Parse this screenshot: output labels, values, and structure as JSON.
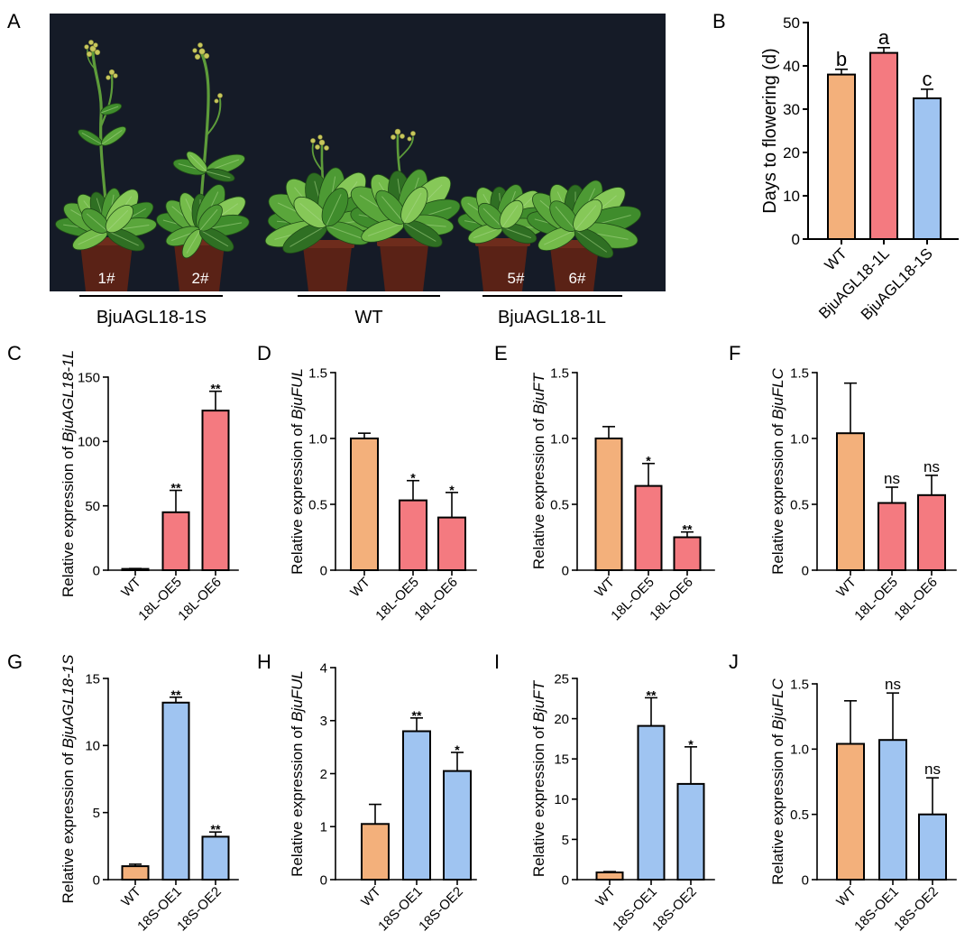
{
  "figure": {
    "photo": {
      "letter": "A",
      "pot_labels": [
        "1#",
        "2#",
        "5#",
        "6#"
      ],
      "group_labels": [
        "BjuAGL18-1S",
        "WT",
        "BjuAGL18-1L"
      ]
    },
    "colors": {
      "wt": "#F3B07B",
      "bjuagl18_1l": "#F47A80",
      "bjuagl18_1s": "#9FC4F1",
      "axis": "#000000",
      "photo_background": "#151B27",
      "pot": "#5A2216",
      "leaf": "#4E9A33"
    }
  },
  "chart_data": [
    {
      "panel": "B",
      "type": "bar",
      "ylabel": "Days to flowering (d)",
      "ylabel_italic": "",
      "categories": [
        "WT",
        "BjuAGL18-1L",
        "BjuAGL18-1S"
      ],
      "values": [
        38,
        43,
        32.5
      ],
      "errors": [
        1.2,
        1.2,
        2.1
      ],
      "annotations": [
        "b",
        "a",
        "c"
      ],
      "ylim": [
        0,
        50
      ],
      "yticks": [
        0,
        10,
        20,
        30,
        40,
        50
      ],
      "ytick_labels": [
        "0",
        "10",
        "20",
        "30",
        "40",
        "50"
      ],
      "bar_colors": [
        "#F3B07B",
        "#F47A80",
        "#9FC4F1"
      ]
    },
    {
      "panel": "C",
      "type": "bar",
      "ylabel": "Relative expression of ",
      "ylabel_italic": "BjuAGL18-1L",
      "categories": [
        "WT",
        "18L-OE5",
        "18L-OE6"
      ],
      "values": [
        1,
        45,
        124
      ],
      "errors": [
        0.3,
        17,
        15
      ],
      "annotations": [
        "",
        "**",
        "**"
      ],
      "ylim": [
        0,
        150
      ],
      "yticks": [
        0,
        50,
        100,
        150
      ],
      "ytick_labels": [
        "0",
        "50",
        "100",
        "150"
      ],
      "bar_colors": [
        "#F3B07B",
        "#F47A80",
        "#F47A80"
      ]
    },
    {
      "panel": "D",
      "type": "bar",
      "ylabel": "Relative expression of ",
      "ylabel_italic": "BjuFUL",
      "categories": [
        "WT",
        "18L-OE5",
        "18L-OE6"
      ],
      "values": [
        1.0,
        0.53,
        0.4
      ],
      "errors": [
        0.04,
        0.15,
        0.19
      ],
      "annotations": [
        "",
        "*",
        "*"
      ],
      "ylim": [
        0,
        1.5
      ],
      "yticks": [
        0,
        0.5,
        1.0,
        1.5
      ],
      "ytick_labels": [
        "0",
        "0.5",
        "1.0",
        "1.5"
      ],
      "bar_colors": [
        "#F3B07B",
        "#F47A80",
        "#F47A80"
      ]
    },
    {
      "panel": "E",
      "type": "bar",
      "ylabel": "Relative expression of ",
      "ylabel_italic": "BjuFT",
      "categories": [
        "WT",
        "18L-OE5",
        "18L-OE6"
      ],
      "values": [
        1.0,
        0.64,
        0.25
      ],
      "errors": [
        0.09,
        0.17,
        0.04
      ],
      "annotations": [
        "",
        "*",
        "**"
      ],
      "ylim": [
        0,
        1.5
      ],
      "yticks": [
        0,
        0.5,
        1.0,
        1.5
      ],
      "ytick_labels": [
        "0",
        "0.5",
        "1.0",
        "1.5"
      ],
      "bar_colors": [
        "#F3B07B",
        "#F47A80",
        "#F47A80"
      ]
    },
    {
      "panel": "F",
      "type": "bar",
      "ylabel": "Relative expression of ",
      "ylabel_italic": "BjuFLC",
      "categories": [
        "WT",
        "18L-OE5",
        "18L-OE6"
      ],
      "values": [
        1.04,
        0.51,
        0.57
      ],
      "errors": [
        0.38,
        0.12,
        0.15
      ],
      "annotations": [
        "",
        "ns",
        "ns"
      ],
      "ylim": [
        0,
        1.5
      ],
      "yticks": [
        0,
        0.5,
        1.0,
        1.5
      ],
      "ytick_labels": [
        "0",
        "0.5",
        "1.0",
        "1.5"
      ],
      "bar_colors": [
        "#F3B07B",
        "#F47A80",
        "#F47A80"
      ]
    },
    {
      "panel": "G",
      "type": "bar",
      "ylabel": "Relative expression of ",
      "ylabel_italic": "BjuAGL18-1S",
      "categories": [
        "WT",
        "18S-OE1",
        "18S-OE2"
      ],
      "values": [
        1.0,
        13.2,
        3.2
      ],
      "errors": [
        0.15,
        0.4,
        0.35
      ],
      "annotations": [
        "",
        "**",
        "**"
      ],
      "ylim": [
        0,
        15
      ],
      "yticks": [
        0,
        5,
        10,
        15
      ],
      "ytick_labels": [
        "0",
        "5",
        "10",
        "15"
      ],
      "bar_colors": [
        "#F3B07B",
        "#9FC4F1",
        "#9FC4F1"
      ]
    },
    {
      "panel": "H",
      "type": "bar",
      "ylabel": "Relative expression of ",
      "ylabel_italic": "BjuFUL",
      "categories": [
        "WT",
        "18S-OE1",
        "18S-OE2"
      ],
      "values": [
        1.05,
        2.8,
        2.05
      ],
      "errors": [
        0.37,
        0.25,
        0.35
      ],
      "annotations": [
        "",
        "**",
        "*"
      ],
      "ylim": [
        0,
        4
      ],
      "yticks": [
        0,
        1,
        2,
        3,
        4
      ],
      "ytick_labels": [
        "0",
        "1",
        "2",
        "3",
        "4"
      ],
      "bar_colors": [
        "#F3B07B",
        "#9FC4F1",
        "#9FC4F1"
      ]
    },
    {
      "panel": "I",
      "type": "bar",
      "ylabel": "Relative expression of ",
      "ylabel_italic": "BjuFT",
      "categories": [
        "WT",
        "18S-OE1",
        "18S-OE2"
      ],
      "values": [
        0.9,
        19.1,
        11.9
      ],
      "errors": [
        0.1,
        3.5,
        4.6
      ],
      "annotations": [
        "",
        "**",
        "*"
      ],
      "ylim": [
        0,
        25
      ],
      "yticks": [
        0,
        5,
        10,
        15,
        20,
        25
      ],
      "ytick_labels": [
        "0",
        "5",
        "10",
        "15",
        "20",
        "25"
      ],
      "bar_colors": [
        "#F3B07B",
        "#9FC4F1",
        "#9FC4F1"
      ]
    },
    {
      "panel": "J",
      "type": "bar",
      "ylabel": "Relative expression of ",
      "ylabel_italic": "BjuFLC",
      "categories": [
        "WT",
        "18S-OE1",
        "18S-OE2"
      ],
      "values": [
        1.04,
        1.07,
        0.5
      ],
      "errors": [
        0.33,
        0.36,
        0.28
      ],
      "annotations": [
        "",
        "ns",
        "ns"
      ],
      "ylim": [
        0,
        1.5
      ],
      "yticks": [
        0,
        0.5,
        1.0,
        1.5
      ],
      "ytick_labels": [
        "0",
        "0.5",
        "1.0",
        "1.5"
      ],
      "bar_colors": [
        "#F3B07B",
        "#9FC4F1",
        "#9FC4F1"
      ]
    }
  ]
}
